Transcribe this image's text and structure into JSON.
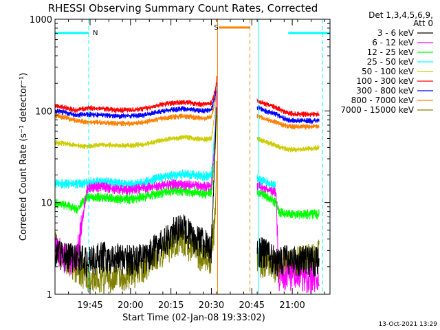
{
  "chart_data": {
    "type": "line",
    "title": "RHESSI Observing Summary Count Rates, Corrected",
    "xlabel": "Start Time (02-Jan-08 19:33:02)",
    "ylabel": "Corrected Count Rate (s⁻¹ detector⁻¹)",
    "y_scale": "log",
    "xlim_minutes": [
      0,
      102
    ],
    "ylim": [
      1,
      1000
    ],
    "x_ticks": [
      {
        "minute": 13,
        "label": "19:45"
      },
      {
        "minute": 28,
        "label": "20:00"
      },
      {
        "minute": 43,
        "label": "20:15"
      },
      {
        "minute": 58,
        "label": "20:30"
      },
      {
        "minute": 73,
        "label": "20:45"
      },
      {
        "minute": 88,
        "label": "21:00"
      }
    ],
    "y_ticks": [
      {
        "value": 1,
        "label": "1"
      },
      {
        "value": 10,
        "label": "10"
      },
      {
        "value": 100,
        "label": "100"
      },
      {
        "value": 1000,
        "label": "1000"
      }
    ],
    "legend_header": [
      "Det 1,3,4,5,6,9,",
      "Att 0"
    ],
    "data_gap_minutes": [
      60.3,
      73.5
    ],
    "series": [
      {
        "name": "3 - 6 keV",
        "color": "#000000",
        "points": [
          [
            0,
            2.8
          ],
          [
            4,
            2.5
          ],
          [
            8,
            2.5
          ],
          [
            12,
            2.3
          ],
          [
            18,
            2.6
          ],
          [
            22,
            2.5
          ],
          [
            28,
            2.4
          ],
          [
            33,
            2.5
          ],
          [
            37,
            3.1
          ],
          [
            40,
            3.6
          ],
          [
            44,
            5.0
          ],
          [
            48,
            5.2
          ],
          [
            52,
            4.0
          ],
          [
            55,
            3.8
          ],
          [
            58,
            3.2
          ],
          [
            59.5,
            50
          ],
          [
            60,
            120
          ]
        ],
        "points_after": [
          [
            75,
            3.0
          ],
          [
            78,
            2.8
          ],
          [
            82,
            2.3
          ],
          [
            86,
            2.4
          ],
          [
            90,
            2.4
          ],
          [
            95,
            2.3
          ],
          [
            98,
            2.5
          ]
        ]
      },
      {
        "name": "6 - 12 keV",
        "color": "#ff00ff",
        "points": [
          [
            0,
            3.2
          ],
          [
            4,
            2.5
          ],
          [
            8,
            2.5
          ],
          [
            12,
            14.5
          ],
          [
            18,
            15
          ],
          [
            22,
            14
          ],
          [
            28,
            14
          ],
          [
            33,
            14.5
          ],
          [
            37,
            15
          ],
          [
            40,
            15.5
          ],
          [
            44,
            16
          ],
          [
            48,
            15.5
          ],
          [
            52,
            15.5
          ],
          [
            55,
            15
          ],
          [
            58,
            15
          ],
          [
            59.5,
            60
          ],
          [
            60,
            180
          ]
        ],
        "points_after": [
          [
            75,
            15.5
          ],
          [
            78,
            14
          ],
          [
            82,
            13
          ],
          [
            83,
            1.6
          ],
          [
            86,
            1.7
          ],
          [
            90,
            1.6
          ],
          [
            95,
            1.5
          ],
          [
            98,
            1.6
          ]
        ]
      },
      {
        "name": "12 - 25 keV",
        "color": "#00ff00",
        "points": [
          [
            0,
            10
          ],
          [
            4,
            9.5
          ],
          [
            8,
            8.5
          ],
          [
            12,
            11.5
          ],
          [
            18,
            11.5
          ],
          [
            22,
            11
          ],
          [
            28,
            11
          ],
          [
            33,
            11.5
          ],
          [
            37,
            12.5
          ],
          [
            40,
            13
          ],
          [
            44,
            13.5
          ],
          [
            48,
            13.5
          ],
          [
            52,
            13
          ],
          [
            55,
            12.5
          ],
          [
            58,
            13
          ],
          [
            59.5,
            40
          ],
          [
            60,
            100
          ]
        ],
        "points_after": [
          [
            75,
            13
          ],
          [
            78,
            12
          ],
          [
            82,
            10
          ],
          [
            83,
            8
          ],
          [
            86,
            7.5
          ],
          [
            90,
            7.5
          ],
          [
            95,
            7.5
          ],
          [
            98,
            7.5
          ]
        ]
      },
      {
        "name": "25 - 50 keV",
        "color": "#00ffff",
        "points": [
          [
            0,
            16.5
          ],
          [
            4,
            16
          ],
          [
            8,
            16
          ],
          [
            12,
            16.5
          ],
          [
            18,
            17
          ],
          [
            22,
            16.5
          ],
          [
            28,
            16
          ],
          [
            33,
            16.5
          ],
          [
            37,
            18
          ],
          [
            40,
            19
          ],
          [
            44,
            20
          ],
          [
            48,
            20.5
          ],
          [
            52,
            20
          ],
          [
            55,
            19.5
          ],
          [
            58,
            19.5
          ],
          [
            59.5,
            80
          ],
          [
            60,
            200
          ]
        ],
        "points_after": [
          [
            75,
            18
          ],
          [
            78,
            17
          ],
          [
            82,
            15
          ]
        ]
      },
      {
        "name": "50 - 100 keV",
        "color": "#cccc00",
        "points": [
          [
            0,
            45
          ],
          [
            4,
            44
          ],
          [
            8,
            42
          ],
          [
            12,
            41
          ],
          [
            18,
            43
          ],
          [
            22,
            42
          ],
          [
            28,
            42
          ],
          [
            33,
            43
          ],
          [
            37,
            46
          ],
          [
            40,
            48
          ],
          [
            44,
            50
          ],
          [
            48,
            52
          ],
          [
            52,
            50
          ],
          [
            55,
            49
          ],
          [
            58,
            50
          ],
          [
            59.5,
            100
          ],
          [
            60,
            150
          ]
        ],
        "points_after": [
          [
            75,
            50
          ],
          [
            78,
            46
          ],
          [
            82,
            42
          ],
          [
            86,
            38
          ],
          [
            90,
            38
          ],
          [
            95,
            39
          ],
          [
            98,
            40
          ]
        ]
      },
      {
        "name": "100 - 300 keV",
        "color": "#ff0000",
        "points": [
          [
            0,
            115
          ],
          [
            4,
            108
          ],
          [
            8,
            102
          ],
          [
            12,
            108
          ],
          [
            18,
            106
          ],
          [
            22,
            102
          ],
          [
            28,
            102
          ],
          [
            33,
            106
          ],
          [
            37,
            112
          ],
          [
            40,
            118
          ],
          [
            44,
            122
          ],
          [
            48,
            125
          ],
          [
            52,
            120
          ],
          [
            55,
            118
          ],
          [
            58,
            122
          ],
          [
            59.5,
            170
          ],
          [
            60,
            240
          ]
        ],
        "points_after": [
          [
            75,
            130
          ],
          [
            78,
            120
          ],
          [
            82,
            110
          ],
          [
            86,
            95
          ],
          [
            90,
            92
          ],
          [
            95,
            92
          ],
          [
            98,
            93
          ]
        ]
      },
      {
        "name": "300 - 800 keV",
        "color": "#0000ff",
        "points": [
          [
            0,
            100
          ],
          [
            4,
            96
          ],
          [
            8,
            90
          ],
          [
            12,
            92
          ],
          [
            18,
            90
          ],
          [
            22,
            88
          ],
          [
            28,
            88
          ],
          [
            33,
            90
          ],
          [
            37,
            96
          ],
          [
            40,
            100
          ],
          [
            44,
            103
          ],
          [
            48,
            106
          ],
          [
            52,
            102
          ],
          [
            55,
            100
          ],
          [
            58,
            103
          ],
          [
            59.5,
            150
          ],
          [
            60,
            200
          ]
        ],
        "points_after": [
          [
            75,
            110
          ],
          [
            78,
            100
          ],
          [
            82,
            92
          ],
          [
            86,
            80
          ],
          [
            90,
            78
          ],
          [
            95,
            78
          ],
          [
            98,
            78
          ]
        ]
      },
      {
        "name": "800 - 7000 keV",
        "color": "#ff8000",
        "points": [
          [
            0,
            90
          ],
          [
            4,
            84
          ],
          [
            8,
            78
          ],
          [
            12,
            76
          ],
          [
            18,
            75
          ],
          [
            22,
            73
          ],
          [
            28,
            73
          ],
          [
            33,
            75
          ],
          [
            37,
            80
          ],
          [
            40,
            83
          ],
          [
            44,
            86
          ],
          [
            48,
            88
          ],
          [
            52,
            85
          ],
          [
            55,
            83
          ],
          [
            58,
            86
          ],
          [
            59.5,
            130
          ],
          [
            60,
            180
          ]
        ],
        "points_after": [
          [
            75,
            90
          ],
          [
            78,
            82
          ],
          [
            82,
            75
          ],
          [
            86,
            68
          ],
          [
            90,
            67
          ],
          [
            95,
            67
          ],
          [
            98,
            68
          ]
        ]
      },
      {
        "name": "7000 - 15000 keV",
        "color": "#808000",
        "points": [
          [
            0,
            3.6
          ],
          [
            4,
            2.5
          ],
          [
            8,
            2.0
          ],
          [
            12,
            1.6
          ],
          [
            18,
            1.5
          ],
          [
            22,
            1.6
          ],
          [
            28,
            1.7
          ],
          [
            33,
            2.0
          ],
          [
            37,
            2.5
          ],
          [
            40,
            3.0
          ],
          [
            44,
            3.6
          ],
          [
            48,
            3.8
          ],
          [
            52,
            3.0
          ],
          [
            55,
            2.6
          ],
          [
            58,
            2.5
          ],
          [
            59.5,
            8
          ],
          [
            60,
            30
          ]
        ],
        "points_after": [
          [
            75,
            2.4
          ],
          [
            78,
            2.2
          ],
          [
            82,
            2.0
          ],
          [
            86,
            2.1
          ],
          [
            90,
            2.3
          ],
          [
            95,
            2.5
          ],
          [
            98,
            2.8
          ]
        ]
      }
    ],
    "flag_bars": [
      {
        "label": "N",
        "color": "#00ffff",
        "segments": [
          [
            0,
            12.5
          ],
          [
            86.5,
            102
          ]
        ],
        "label_minute": 13.5
      },
      {
        "label": "S",
        "color": "#ff8000",
        "segments": [
          [
            60.8,
            72.3
          ]
        ],
        "label_minute": 58.5
      }
    ],
    "vertical_markers": [
      {
        "minute": 12.5,
        "color": "#00ffff",
        "style": "dashed"
      },
      {
        "minute": 60.3,
        "color": "#ff8000",
        "style": "solid"
      },
      {
        "minute": 72.3,
        "color": "#ff8000",
        "style": "dashed"
      },
      {
        "minute": 75.5,
        "color": "#00ffff",
        "style": "solid"
      },
      {
        "minute": 99.2,
        "color": "#00ffff",
        "style": "dashed"
      }
    ],
    "footer_date": "13-Oct-2021 13:29"
  }
}
